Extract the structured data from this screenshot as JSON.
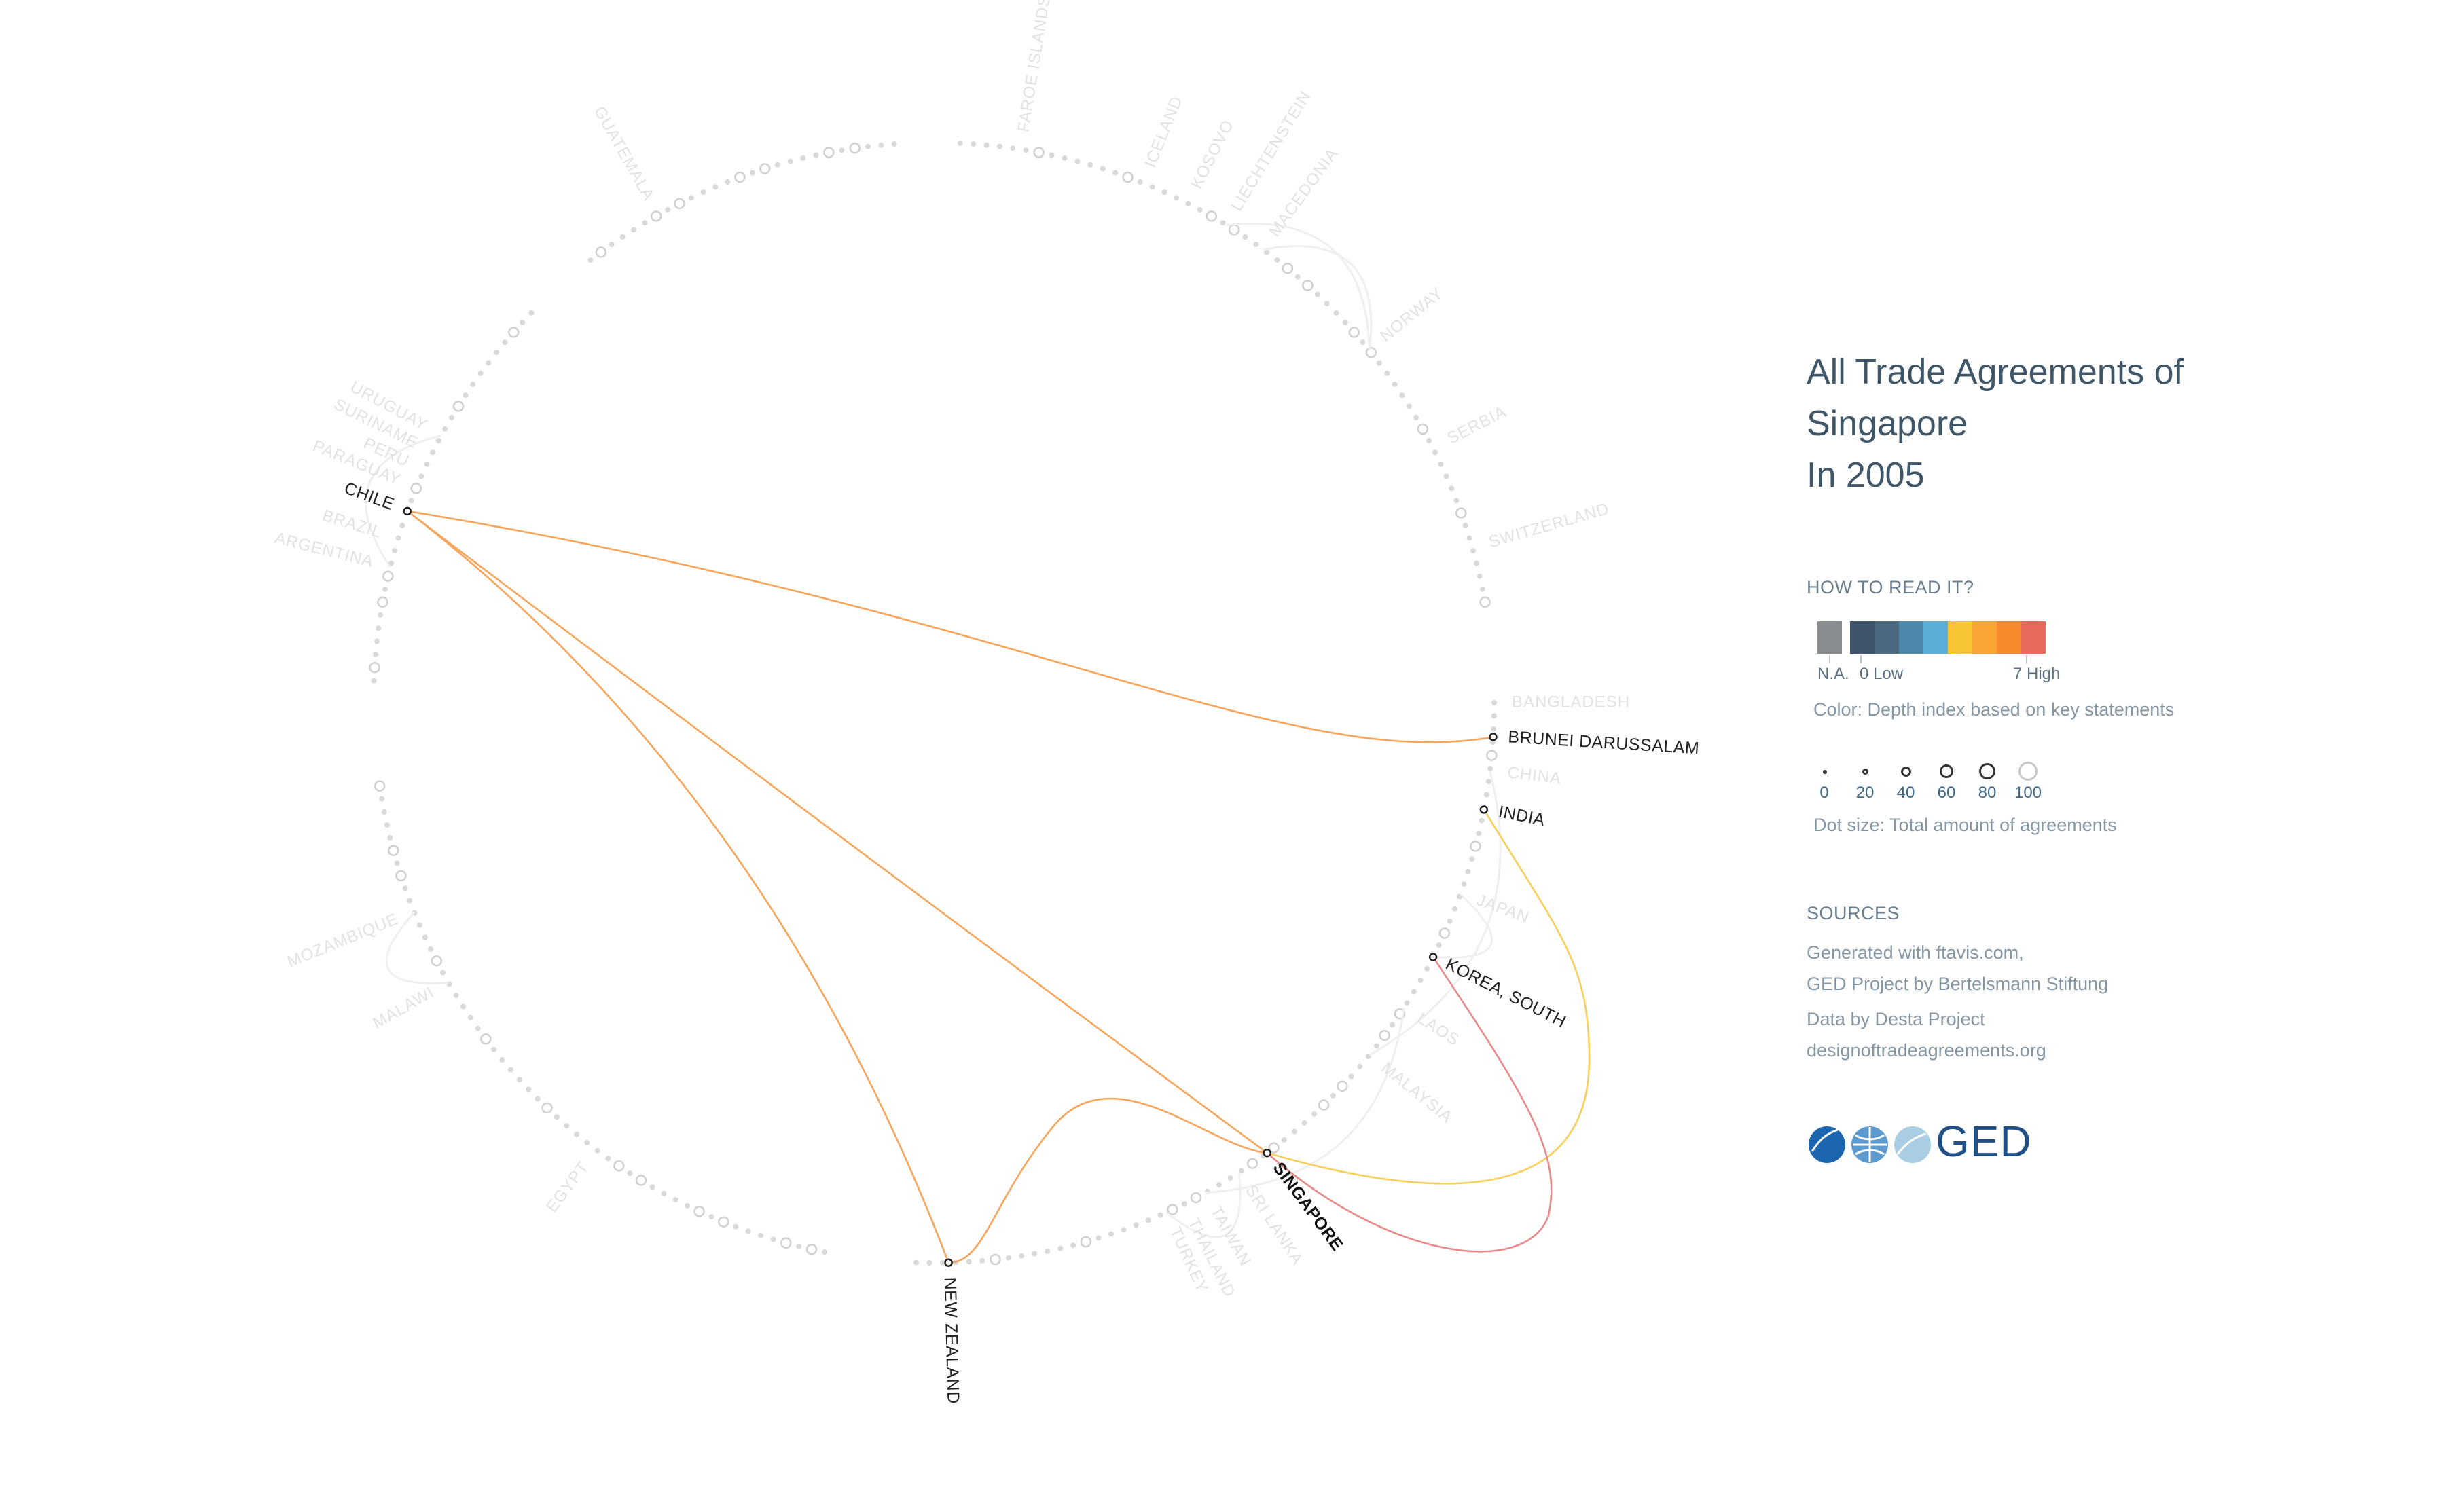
{
  "title": {
    "line1": "All Trade Agreements of",
    "line2": "Singapore",
    "line3": "In 2005"
  },
  "legend": {
    "how_to_read": "HOW TO READ IT?",
    "color_scale": {
      "na_label": "N.A.",
      "low_label": "0 Low",
      "high_label": "7 High",
      "na_color": "#8a8d90",
      "colors": [
        "#3e5569",
        "#4b6a80",
        "#4e88aa",
        "#5baed7",
        "#f8c634",
        "#f9a534",
        "#f88a2e",
        "#e86a5c"
      ]
    },
    "color_note": "Color: Depth index based on key statements",
    "dot_sizes": [
      "0",
      "20",
      "40",
      "60",
      "80",
      "100"
    ],
    "dot_note": "Dot size: Total amount of agreements"
  },
  "sources": {
    "heading": "SOURCES",
    "line1": "Generated with ftavis.com,",
    "line2": "GED Project by Bertelsmann Stiftung",
    "line3": "Data by Desta Project",
    "line4": "designoftradeagreements.org"
  },
  "logo": {
    "text": "GED"
  },
  "network": {
    "focus_country": "SINGAPORE",
    "active_countries": [
      "CHILE",
      "BRUNEI DARUSSALAM",
      "INDIA",
      "KOREA, SOUTH",
      "NEW ZEALAND"
    ],
    "faint_countries": [
      "GUATEMALA",
      "FAROE ISLANDS",
      "ICELAND",
      "KOSOVO",
      "LIECHTENSTEIN",
      "MACEDONIA",
      "NORWAY",
      "SERBIA",
      "SWITZERLAND",
      "URUGUAY",
      "SURINAME",
      "PERU",
      "PARAGUAY",
      "BRAZIL",
      "ARGENTINA",
      "BANGLADESH",
      "CHINA",
      "JAPAN",
      "LAOS",
      "MALAYSIA",
      "SRI LANKA",
      "TAIWAN",
      "THAILAND",
      "TURKEY",
      "MOZAMBIQUE",
      "MALAWI",
      "EGYPT"
    ],
    "links": [
      {
        "from": "SINGAPORE",
        "to": "CHILE",
        "color": "#f7a55b"
      },
      {
        "from": "CHILE",
        "to": "BRUNEI DARUSSALAM",
        "color": "#f7a55b"
      },
      {
        "from": "CHILE",
        "to": "NEW ZEALAND",
        "color": "#f7a55b"
      },
      {
        "from": "SINGAPORE",
        "to": "NEW ZEALAND",
        "color": "#f7a55b"
      },
      {
        "from": "SINGAPORE",
        "to": "INDIA",
        "color": "#f8cf5a"
      },
      {
        "from": "SINGAPORE",
        "to": "KOREA, SOUTH",
        "color": "#e88a8a"
      }
    ]
  }
}
